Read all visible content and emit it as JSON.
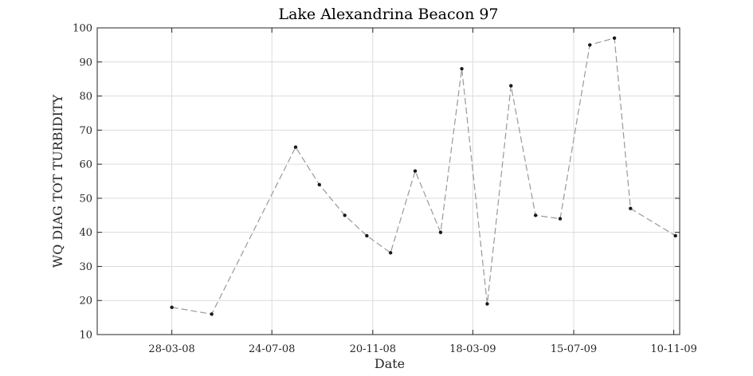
{
  "chart_data": {
    "type": "line",
    "title": "Lake Alexandrina Beacon 97",
    "xlabel": "Date",
    "ylabel": "WQ DIAG TOT TURBIDITY",
    "x_scale": "date",
    "xlim": [
      "2007-12-31",
      "2009-11-17"
    ],
    "ylim": [
      10,
      100
    ],
    "x_ticks": [
      "2008-03-28",
      "2008-07-24",
      "2008-11-20",
      "2009-03-18",
      "2009-07-15",
      "2009-11-10"
    ],
    "x_tick_labels": [
      "28-03-08",
      "24-07-08",
      "20-11-08",
      "18-03-09",
      "15-07-09",
      "10-11-09"
    ],
    "y_ticks": [
      10,
      20,
      30,
      40,
      50,
      60,
      70,
      80,
      90,
      100
    ],
    "y_tick_labels": [
      "10",
      "20",
      "30",
      "40",
      "50",
      "60",
      "70",
      "80",
      "90",
      "100"
    ],
    "grid": true,
    "series": [
      {
        "line_style": "dashed",
        "line_color": "#999999",
        "marker_color": "#1a1a1a",
        "points": [
          {
            "x": "2008-03-28",
            "y": 18
          },
          {
            "x": "2008-05-14",
            "y": 16
          },
          {
            "x": "2008-08-21",
            "y": 65
          },
          {
            "x": "2008-09-18",
            "y": 54
          },
          {
            "x": "2008-10-18",
            "y": 45
          },
          {
            "x": "2008-11-13",
            "y": 39
          },
          {
            "x": "2008-12-11",
            "y": 34
          },
          {
            "x": "2009-01-09",
            "y": 58
          },
          {
            "x": "2009-02-08",
            "y": 40
          },
          {
            "x": "2009-03-05",
            "y": 88
          },
          {
            "x": "2009-04-04",
            "y": 19
          },
          {
            "x": "2009-05-02",
            "y": 83
          },
          {
            "x": "2009-05-31",
            "y": 45
          },
          {
            "x": "2009-06-29",
            "y": 44
          },
          {
            "x": "2009-08-03",
            "y": 95
          },
          {
            "x": "2009-09-01",
            "y": 97
          },
          {
            "x": "2009-09-20",
            "y": 47
          },
          {
            "x": "2009-11-12",
            "y": 39
          }
        ]
      }
    ]
  }
}
